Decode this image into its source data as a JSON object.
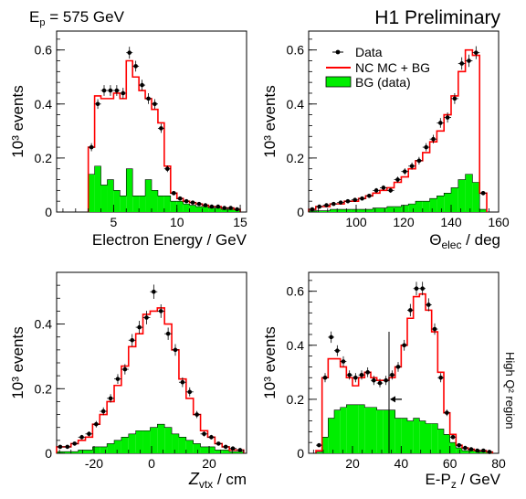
{
  "header": {
    "energy_prefix": "E",
    "energy_sub": "p",
    "energy_value": " = 575 GeV",
    "preliminary": "H1 Preliminary",
    "side_label": "High Q² region"
  },
  "colors": {
    "mc": "#ff0000",
    "bg_fill": "#00ee00",
    "bg_edge": "#000000",
    "data_marker": "#000000"
  },
  "legend": {
    "data": "Data",
    "mc": "NC MC + BG",
    "bg": "BG (data)"
  },
  "chart_data": [
    {
      "type": "histogram",
      "panel": "top-left",
      "xlabel": "Electron Energy / GeV",
      "ylabel": "10³ events",
      "xlim": [
        0.5,
        15.5
      ],
      "ylim": [
        0,
        0.67
      ],
      "xticks": [
        5,
        10,
        15
      ],
      "yticks": [
        0,
        0.2,
        0.4,
        0.6
      ],
      "bin_edges": [
        3.0,
        3.5,
        4.0,
        4.5,
        5.0,
        5.5,
        6.0,
        6.5,
        7.0,
        7.5,
        8.0,
        8.5,
        9.0,
        9.5,
        10.0,
        10.5,
        11.0,
        11.5,
        12.0,
        12.5,
        13.0,
        13.5,
        14.0,
        14.5,
        15.0
      ],
      "mc": [
        0.24,
        0.43,
        0.42,
        0.42,
        0.44,
        0.42,
        0.56,
        0.5,
        0.45,
        0.42,
        0.38,
        0.33,
        0.17,
        0.07,
        0.05,
        0.04,
        0.035,
        0.03,
        0.025,
        0.02,
        0.02,
        0.015,
        0.015,
        0.01
      ],
      "bg": [
        0.14,
        0.17,
        0.1,
        0.12,
        0.08,
        0.06,
        0.16,
        0.06,
        0.06,
        0.12,
        0.08,
        0.06,
        0.06,
        0.04,
        0.04,
        0.03,
        0.025,
        0.02,
        0.02,
        0.015,
        0.015,
        0.01,
        0.01,
        0.01
      ],
      "data": [
        0.24,
        0.4,
        0.45,
        0.45,
        0.45,
        0.44,
        0.59,
        0.54,
        0.47,
        0.42,
        0.4,
        0.31,
        0.16,
        0.07,
        0.05,
        0.04,
        0.035,
        0.03,
        0.025,
        0.02,
        0.02,
        0.015,
        0.015,
        0.01
      ],
      "data_err": [
        0.015,
        0.018,
        0.02,
        0.02,
        0.02,
        0.02,
        0.022,
        0.02,
        0.02,
        0.02,
        0.018,
        0.017,
        0.012,
        0.008,
        0.007,
        0.006,
        0.006,
        0.005,
        0.005,
        0.004,
        0.004,
        0.004,
        0.004,
        0.003
      ]
    },
    {
      "type": "histogram",
      "panel": "top-right",
      "xlabel": "Θelec / deg",
      "ylabel": "10³ events",
      "xlim": [
        80,
        160
      ],
      "ylim": [
        0,
        0.67
      ],
      "xticks": [
        100,
        120,
        140,
        160
      ],
      "yticks": [
        0,
        0.2,
        0.4,
        0.6
      ],
      "bin_edges": [
        80,
        83,
        86,
        89,
        92,
        95,
        98,
        101,
        104,
        107,
        110,
        113,
        116,
        119,
        122,
        125,
        128,
        131,
        134,
        137,
        140,
        143,
        146,
        149,
        152,
        155
      ],
      "mc": [
        0.01,
        0.02,
        0.02,
        0.03,
        0.03,
        0.04,
        0.04,
        0.05,
        0.06,
        0.07,
        0.08,
        0.09,
        0.11,
        0.13,
        0.16,
        0.19,
        0.22,
        0.26,
        0.3,
        0.36,
        0.43,
        0.52,
        0.6,
        0.58,
        0.07
      ],
      "bg": [
        0.005,
        0.005,
        0.005,
        0.01,
        0.01,
        0.01,
        0.01,
        0.01,
        0.01,
        0.015,
        0.015,
        0.02,
        0.02,
        0.025,
        0.03,
        0.04,
        0.04,
        0.05,
        0.06,
        0.07,
        0.09,
        0.12,
        0.14,
        0.11,
        0.01
      ],
      "data": [
        0.01,
        0.02,
        0.025,
        0.03,
        0.035,
        0.04,
        0.045,
        0.05,
        0.06,
        0.08,
        0.09,
        0.08,
        0.12,
        0.15,
        0.17,
        0.19,
        0.24,
        0.27,
        0.33,
        0.35,
        0.42,
        0.55,
        0.56,
        0.59,
        0.07
      ],
      "data_err": [
        0.003,
        0.004,
        0.004,
        0.005,
        0.005,
        0.006,
        0.006,
        0.007,
        0.007,
        0.009,
        0.009,
        0.009,
        0.011,
        0.012,
        0.013,
        0.014,
        0.015,
        0.016,
        0.018,
        0.019,
        0.02,
        0.023,
        0.023,
        0.024,
        0.008
      ]
    },
    {
      "type": "histogram",
      "panel": "bottom-left",
      "xlabel": "Zvtx / cm",
      "ylabel": "10³ events",
      "xlim": [
        -33,
        33
      ],
      "ylim": [
        0,
        0.56
      ],
      "xticks": [
        -20,
        0,
        20
      ],
      "yticks": [
        0,
        0.2,
        0.4
      ],
      "bin_edges": [
        -33,
        -30.5,
        -28,
        -25.5,
        -23,
        -20.5,
        -18,
        -15.5,
        -13,
        -10.5,
        -8,
        -5.5,
        -3,
        -0.5,
        2,
        4.5,
        7,
        9.5,
        12,
        14.5,
        17,
        19.5,
        22,
        24.5,
        27,
        29.5,
        32
      ],
      "mc": [
        0.02,
        0.02,
        0.03,
        0.04,
        0.05,
        0.09,
        0.12,
        0.16,
        0.21,
        0.27,
        0.33,
        0.37,
        0.43,
        0.44,
        0.45,
        0.4,
        0.32,
        0.23,
        0.17,
        0.12,
        0.07,
        0.05,
        0.03,
        0.02,
        0.01,
        0.01
      ],
      "bg": [
        0.005,
        0.005,
        0.005,
        0.01,
        0.01,
        0.02,
        0.02,
        0.03,
        0.04,
        0.05,
        0.06,
        0.07,
        0.07,
        0.08,
        0.09,
        0.08,
        0.06,
        0.05,
        0.04,
        0.03,
        0.02,
        0.02,
        0.01,
        0.01,
        0.005,
        0.005
      ],
      "data": [
        0.02,
        0.02,
        0.03,
        0.05,
        0.06,
        0.09,
        0.13,
        0.17,
        0.23,
        0.26,
        0.35,
        0.39,
        0.42,
        0.5,
        0.44,
        0.37,
        0.32,
        0.22,
        0.19,
        0.12,
        0.06,
        0.05,
        0.03,
        0.02,
        0.015,
        0.01
      ],
      "data_err": [
        0.004,
        0.004,
        0.005,
        0.007,
        0.008,
        0.01,
        0.012,
        0.013,
        0.015,
        0.016,
        0.019,
        0.02,
        0.021,
        0.022,
        0.021,
        0.019,
        0.018,
        0.015,
        0.014,
        0.011,
        0.008,
        0.007,
        0.005,
        0.004,
        0.004,
        0.003
      ]
    },
    {
      "type": "histogram",
      "panel": "bottom-right",
      "xlabel": "E-Pz / GeV",
      "ylabel": "10³ events",
      "xlim": [
        2,
        80
      ],
      "ylim": [
        0,
        0.67
      ],
      "xticks": [
        20,
        40,
        60,
        80
      ],
      "yticks": [
        0,
        0.2,
        0.4,
        0.6
      ],
      "cut_value": 35,
      "bin_edges": [
        5,
        7.5,
        10,
        12.5,
        15,
        17.5,
        20,
        22.5,
        25,
        27.5,
        30,
        32.5,
        35,
        37.5,
        40,
        42.5,
        45,
        47.5,
        50,
        52.5,
        55,
        57.5,
        60,
        62.5,
        65,
        67.5,
        70,
        72.5,
        75,
        77.5
      ],
      "mc": [
        0.01,
        0.28,
        0.35,
        0.35,
        0.32,
        0.28,
        0.25,
        0.28,
        0.3,
        0.28,
        0.27,
        0.27,
        0.28,
        0.32,
        0.4,
        0.5,
        0.58,
        0.59,
        0.53,
        0.45,
        0.3,
        0.15,
        0.07,
        0.03,
        0.02,
        0.015,
        0.01,
        0.01,
        0.005
      ],
      "bg": [
        0.005,
        0.06,
        0.13,
        0.16,
        0.17,
        0.18,
        0.18,
        0.18,
        0.17,
        0.17,
        0.16,
        0.16,
        0.16,
        0.13,
        0.13,
        0.12,
        0.13,
        0.12,
        0.11,
        0.11,
        0.09,
        0.07,
        0.04,
        0.02,
        0.01,
        0.01,
        0.01,
        0.005,
        0.005
      ],
      "data": [
        0.03,
        0.28,
        0.43,
        0.38,
        0.34,
        0.29,
        0.28,
        0.29,
        0.3,
        0.27,
        0.26,
        0.27,
        0.29,
        0.32,
        0.4,
        0.53,
        0.61,
        0.61,
        0.55,
        0.46,
        0.28,
        0.15,
        0.06,
        0.03,
        0.02,
        0.015,
        0.01,
        0.01,
        0.005
      ],
      "data_err": [
        0.006,
        0.017,
        0.021,
        0.02,
        0.019,
        0.017,
        0.017,
        0.017,
        0.018,
        0.017,
        0.016,
        0.017,
        0.017,
        0.018,
        0.02,
        0.023,
        0.025,
        0.025,
        0.024,
        0.021,
        0.017,
        0.012,
        0.008,
        0.006,
        0.005,
        0.004,
        0.003,
        0.003,
        0.002
      ]
    }
  ]
}
